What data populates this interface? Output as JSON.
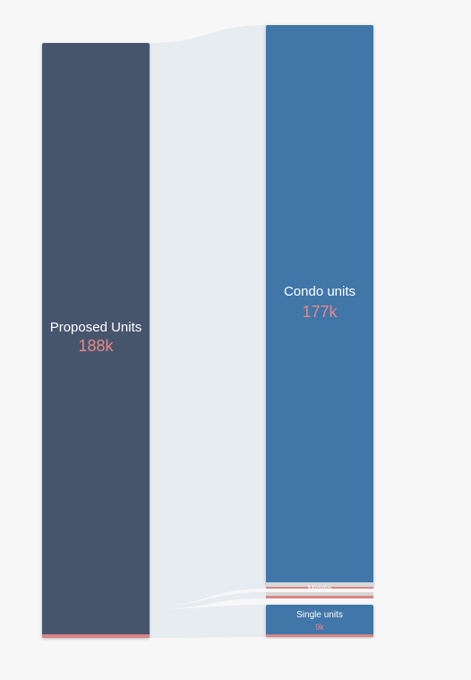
{
  "chart_data": {
    "type": "sankey",
    "total_label": "Proposed Units",
    "total_value_label": "188k",
    "total_value": 188,
    "unit": "k",
    "colors": {
      "source": "#47556c",
      "condo": "#3f76a8",
      "small": "#d8d8d8",
      "single": "#3f76a8",
      "link": "#e6ebf0",
      "accent": "#d98585"
    },
    "targets": [
      {
        "key": "condo",
        "label": "Condo units",
        "value_label": "177k",
        "value": 177
      },
      {
        "key": "middle",
        "label": "Middle",
        "value_label": "",
        "value": 1
      },
      {
        "key": "other",
        "label": "",
        "value_label": "",
        "value": 1
      },
      {
        "key": "single",
        "label": "Single units",
        "value_label": "9k",
        "value": 9
      }
    ]
  }
}
